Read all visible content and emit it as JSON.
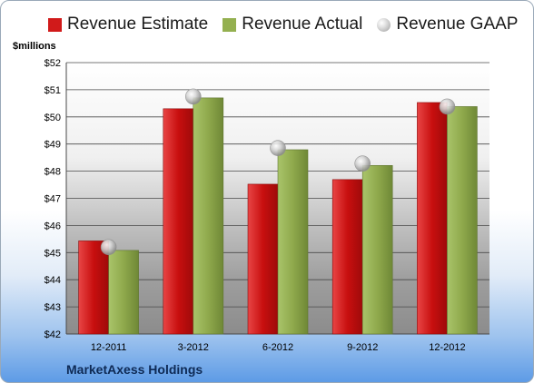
{
  "chart_data": {
    "type": "bar",
    "categories": [
      "12-2011",
      "3-2012",
      "6-2012",
      "9-2012",
      "12-2012"
    ],
    "series": [
      {
        "name": "Revenue Estimate",
        "type": "bar",
        "color": "#d11a1a",
        "values": [
          45.43,
          50.3,
          47.52,
          47.69,
          50.53
        ]
      },
      {
        "name": "Revenue Actual",
        "type": "bar",
        "color": "#94b050",
        "values": [
          45.08,
          50.7,
          48.79,
          48.21,
          50.38
        ]
      },
      {
        "name": "Revenue GAAP",
        "type": "marker",
        "color": "#c8c8c8",
        "values": [
          45.2,
          50.75,
          48.85,
          48.28,
          50.38
        ]
      }
    ],
    "ylabel": "$millions",
    "ylim": [
      42,
      52
    ],
    "yticks": [
      "$42",
      "$43",
      "$44",
      "$45",
      "$46",
      "$47",
      "$48",
      "$49",
      "$50",
      "$51",
      "$52"
    ],
    "grid": true,
    "legend": "top"
  },
  "company": "MarketAxess Holdings"
}
